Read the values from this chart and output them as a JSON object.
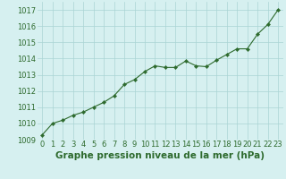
{
  "x": [
    0,
    1,
    2,
    3,
    4,
    5,
    6,
    7,
    8,
    9,
    10,
    11,
    12,
    13,
    14,
    15,
    16,
    17,
    18,
    19,
    20,
    21,
    22,
    23
  ],
  "y": [
    1009.3,
    1010.0,
    1010.2,
    1010.5,
    1010.7,
    1011.0,
    1011.3,
    1011.7,
    1012.4,
    1012.7,
    1013.2,
    1013.55,
    1013.45,
    1013.45,
    1013.85,
    1013.55,
    1013.5,
    1013.9,
    1014.25,
    1014.6,
    1014.6,
    1015.5,
    1016.1,
    1017.0
  ],
  "line_color": "#2d6a2d",
  "marker": "D",
  "marker_size": 2.2,
  "bg_color": "#d6f0f0",
  "grid_color": "#aad4d4",
  "xlabel": "Graphe pression niveau de la mer (hPa)",
  "xlabel_fontsize": 7.5,
  "xlabel_color": "#2d6a2d",
  "ylim": [
    1009,
    1017.5
  ],
  "yticks": [
    1009,
    1010,
    1011,
    1012,
    1013,
    1014,
    1015,
    1016,
    1017
  ],
  "xticks": [
    0,
    1,
    2,
    3,
    4,
    5,
    6,
    7,
    8,
    9,
    10,
    11,
    12,
    13,
    14,
    15,
    16,
    17,
    18,
    19,
    20,
    21,
    22,
    23
  ],
  "tick_fontsize": 6.0,
  "tick_color": "#2d6a2d"
}
